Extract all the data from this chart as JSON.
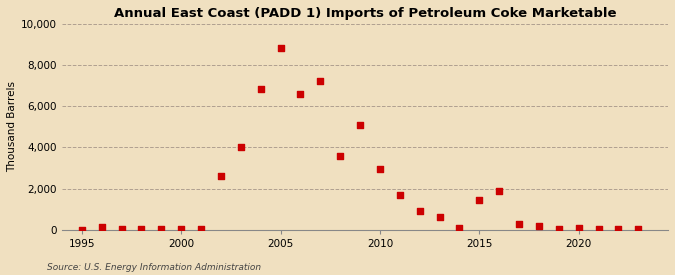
{
  "title": "Annual East Coast (PADD 1) Imports of Petroleum Coke Marketable",
  "ylabel": "Thousand Barrels",
  "source": "Source: U.S. Energy Information Administration",
  "background_color": "#f0e0c0",
  "plot_background_color": "#f0e0c0",
  "marker_color": "#cc0000",
  "ylim": [
    0,
    10000
  ],
  "yticks": [
    0,
    2000,
    4000,
    6000,
    8000,
    10000
  ],
  "xlim": [
    1994.0,
    2024.5
  ],
  "xticks": [
    1995,
    2000,
    2005,
    2010,
    2015,
    2020
  ],
  "years": [
    1995,
    1996,
    1997,
    1998,
    1999,
    2000,
    2001,
    2002,
    2003,
    2004,
    2005,
    2006,
    2007,
    2008,
    2009,
    2010,
    2011,
    2012,
    2013,
    2014,
    2015,
    2016,
    2017,
    2018,
    2019,
    2020,
    2021,
    2022,
    2023
  ],
  "values": [
    0,
    130,
    50,
    50,
    50,
    50,
    50,
    2600,
    4000,
    6850,
    8850,
    6600,
    7250,
    3600,
    5100,
    2950,
    1700,
    900,
    600,
    80,
    1450,
    1900,
    280,
    200,
    50,
    80,
    50,
    50,
    50
  ]
}
